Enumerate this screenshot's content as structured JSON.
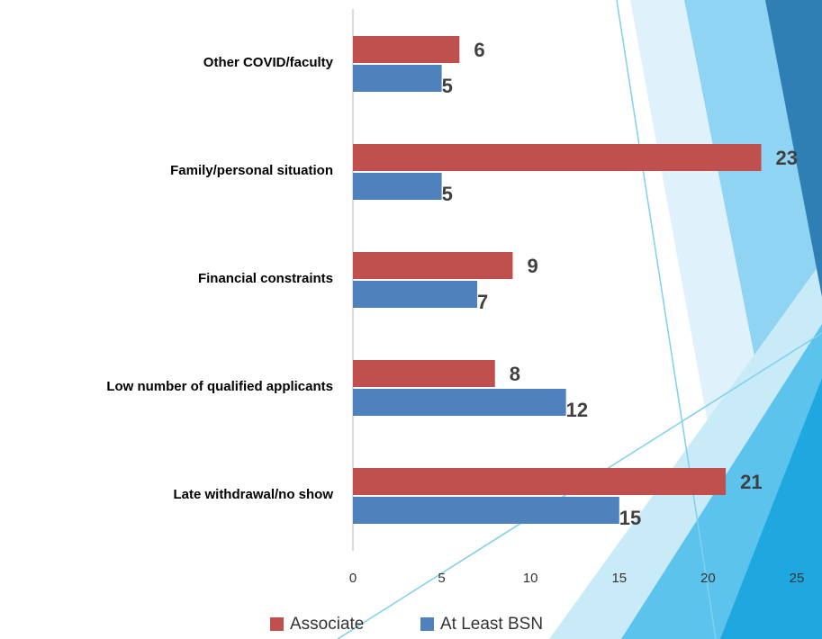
{
  "chart_data": {
    "type": "bar",
    "orientation": "horizontal",
    "categories": [
      "Other COVID/faculty",
      "Family/personal situation",
      "Financial constraints",
      "Low number of qualified applicants",
      "Late withdrawal/no show"
    ],
    "series": [
      {
        "name": "Associate",
        "color": "#c0504d",
        "values": [
          6,
          23,
          9,
          8,
          21
        ]
      },
      {
        "name": "At Least BSN",
        "color": "#4f81bd",
        "values": [
          5,
          5,
          7,
          12,
          15
        ]
      }
    ],
    "xlim": [
      0,
      25
    ],
    "xticks": [
      0,
      5,
      10,
      15,
      20,
      25
    ],
    "legend": "bottom"
  }
}
